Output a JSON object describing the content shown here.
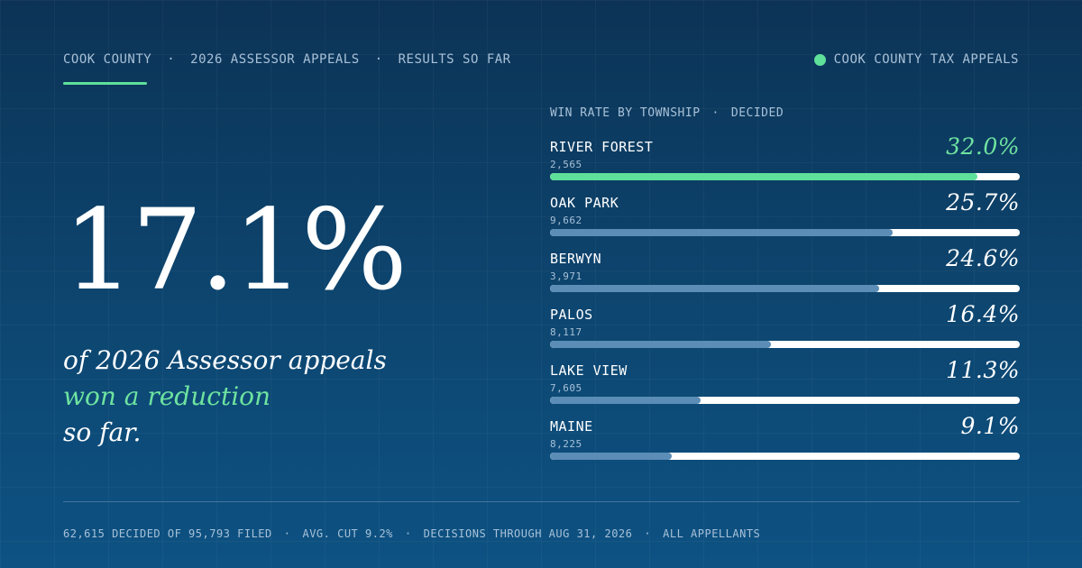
{
  "topbar": {
    "crumbs": [
      "COOK COUNTY",
      "2026 ASSESSOR APPEALS",
      "RESULTS SO FAR"
    ],
    "separator": "·",
    "brand": "COOK COUNTY TAX APPEALS"
  },
  "hero": {
    "stat": "17.1%",
    "line1": "of 2026 Assessor appeals",
    "line2": "won a reduction",
    "line3": "so far."
  },
  "panel": {
    "heading": "WIN RATE BY TOWNSHIP",
    "heading_tag": "DECIDED",
    "rows": [
      {
        "name": "RIVER FOREST",
        "count": "2,565",
        "pct": "32.0%",
        "fill": 0.91
      },
      {
        "name": "OAK PARK",
        "count": "9,662",
        "pct": "25.7%",
        "fill": 0.73
      },
      {
        "name": "BERWYN",
        "count": "3,971",
        "pct": "24.6%",
        "fill": 0.7
      },
      {
        "name": "PALOS",
        "count": "8,117",
        "pct": "16.4%",
        "fill": 0.47
      },
      {
        "name": "LAKE VIEW",
        "count": "7,605",
        "pct": "11.3%",
        "fill": 0.32
      },
      {
        "name": "MAINE",
        "count": "8,225",
        "pct": "9.1%",
        "fill": 0.26
      }
    ]
  },
  "footer": {
    "items": [
      "62,615 DECIDED OF 95,793 FILED",
      "AVG. CUT 9.2%",
      "DECISIONS THROUGH AUG 31, 2026",
      "ALL APPELLANTS"
    ]
  },
  "colors": {
    "accent": "#5fe09a",
    "bar": "#5b8db6",
    "track": "#ffffff",
    "background": "#0d4670"
  }
}
